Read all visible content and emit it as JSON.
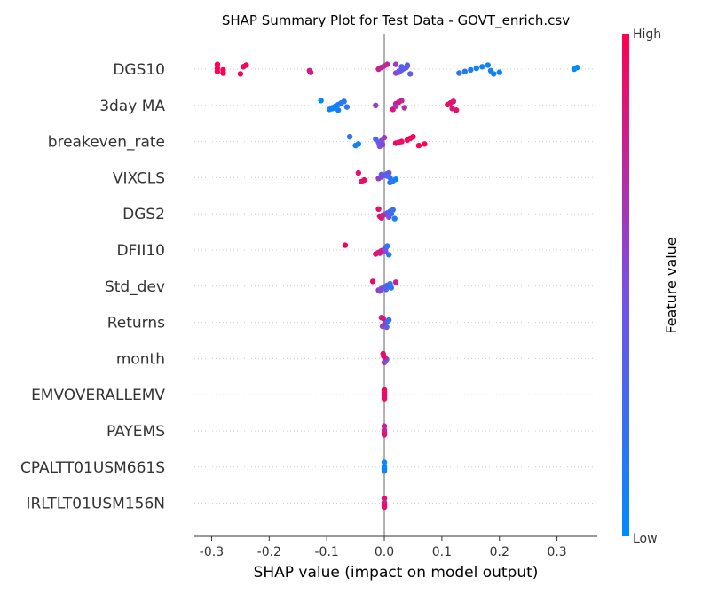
{
  "chart_data": {
    "type": "scatter",
    "title": "SHAP Summary Plot for Test Data - GOVT_enrich.csv",
    "xlabel": "SHAP value (impact on model output)",
    "xlim": [
      -0.33,
      0.37
    ],
    "xticks": [
      "-0.3",
      "-0.2",
      "-0.1",
      "0.0",
      "0.1",
      "0.2",
      "0.3"
    ],
    "xtick_values": [
      -0.3,
      -0.2,
      -0.1,
      0.0,
      0.1,
      0.2,
      0.3
    ],
    "colorbar": {
      "label": "Feature value",
      "high": "High",
      "low": "Low",
      "low_color": "#008bfb",
      "high_color": "#ff0051"
    },
    "features": [
      {
        "name": "DGS10",
        "points": [
          [
            -0.29,
            0.98
          ],
          [
            -0.28,
            1
          ],
          [
            -0.29,
            0.95
          ],
          [
            -0.28,
            0.97
          ],
          [
            -0.29,
            0.99
          ],
          [
            -0.245,
            0.95
          ],
          [
            -0.24,
            0.97
          ],
          [
            -0.25,
            0.98
          ],
          [
            -0.128,
            0.85
          ],
          [
            -0.13,
            0.82
          ],
          [
            -0.01,
            0.8
          ],
          [
            -0.005,
            0.75
          ],
          [
            0.0,
            0.7
          ],
          [
            0.005,
            0.78
          ],
          [
            0.02,
            0.55
          ],
          [
            0.025,
            0.45
          ],
          [
            0.03,
            0.4
          ],
          [
            0.035,
            0.35
          ],
          [
            0.03,
            0.3
          ],
          [
            0.04,
            0.3
          ],
          [
            0.045,
            0.35
          ],
          [
            0.025,
            0.5
          ],
          [
            0.028,
            0.42
          ],
          [
            0.032,
            0.38
          ],
          [
            0.038,
            0.33
          ],
          [
            0.04,
            0.4
          ],
          [
            0.02,
            0.6
          ],
          [
            0.13,
            0.2
          ],
          [
            0.14,
            0.15
          ],
          [
            0.15,
            0.1
          ],
          [
            0.16,
            0.08
          ],
          [
            0.17,
            0.1
          ],
          [
            0.18,
            0.05
          ],
          [
            0.19,
            0.05
          ],
          [
            0.2,
            0.06
          ],
          [
            0.185,
            0.08
          ],
          [
            0.33,
            0.0
          ],
          [
            0.335,
            0.02
          ]
        ]
      },
      {
        "name": "3day MA",
        "points": [
          [
            -0.11,
            0.0
          ],
          [
            -0.095,
            0.05
          ],
          [
            -0.09,
            0.1
          ],
          [
            -0.085,
            0.1
          ],
          [
            -0.08,
            0.1
          ],
          [
            -0.075,
            0.15
          ],
          [
            -0.07,
            0.15
          ],
          [
            -0.08,
            0.08
          ],
          [
            -0.09,
            0.05
          ],
          [
            -0.065,
            0.2
          ],
          [
            -0.015,
            0.6
          ],
          [
            0.02,
            0.8
          ],
          [
            0.025,
            0.85
          ],
          [
            0.03,
            0.75
          ],
          [
            0.015,
            0.9
          ],
          [
            0.035,
            0.7
          ],
          [
            0.02,
            0.65
          ],
          [
            0.11,
            0.95
          ],
          [
            0.115,
            0.9
          ],
          [
            0.12,
            0.88
          ],
          [
            0.125,
            0.92
          ],
          [
            0.118,
            0.85
          ]
        ]
      },
      {
        "name": "breakeven_rate",
        "points": [
          [
            -0.06,
            0.2
          ],
          [
            -0.05,
            0.1
          ],
          [
            -0.045,
            0.05
          ],
          [
            -0.01,
            0.4
          ],
          [
            -0.005,
            0.5
          ],
          [
            -0.015,
            0.3
          ],
          [
            0.0,
            0.6
          ],
          [
            -0.008,
            0.45
          ],
          [
            -0.003,
            0.55
          ],
          [
            0.02,
            1
          ],
          [
            0.03,
            0.95
          ],
          [
            0.04,
            0.97
          ],
          [
            0.045,
            0.92
          ],
          [
            0.05,
            0.96
          ],
          [
            0.06,
            0.98
          ],
          [
            0.07,
            0.95
          ],
          [
            0.025,
            0.9
          ]
        ]
      },
      {
        "name": "VIXCLS",
        "points": [
          [
            -0.045,
            0.9
          ],
          [
            -0.04,
            0.85
          ],
          [
            -0.035,
            0.95
          ],
          [
            -0.01,
            0.6
          ],
          [
            -0.005,
            0.55
          ],
          [
            0.0,
            0.5
          ],
          [
            0.005,
            0.3
          ],
          [
            0.01,
            0.2
          ],
          [
            0.015,
            0.1
          ],
          [
            0.02,
            0.05
          ],
          [
            0.01,
            0.15
          ],
          [
            0.005,
            0.25
          ],
          [
            -0.005,
            0.4
          ],
          [
            0.008,
            0.45
          ],
          [
            0.012,
            0.18
          ]
        ]
      },
      {
        "name": "DGS2",
        "points": [
          [
            -0.01,
            0.9
          ],
          [
            -0.005,
            0.85
          ],
          [
            -0.008,
            0.95
          ],
          [
            0.0,
            0.6
          ],
          [
            0.005,
            0.4
          ],
          [
            0.01,
            0.3
          ],
          [
            0.015,
            0.2
          ],
          [
            0.018,
            0.1
          ],
          [
            0.008,
            0.5
          ],
          [
            -0.003,
            0.75
          ],
          [
            0.012,
            0.25
          ]
        ]
      },
      {
        "name": "DFII10",
        "points": [
          [
            -0.068,
            1.0
          ],
          [
            -0.015,
            0.9
          ],
          [
            -0.01,
            0.85
          ],
          [
            -0.005,
            0.8
          ],
          [
            0.0,
            0.6
          ],
          [
            0.003,
            0.4
          ],
          [
            0.005,
            0.2
          ],
          [
            0.008,
            0.1
          ],
          [
            -0.008,
            0.82
          ],
          [
            0.002,
            0.5
          ]
        ]
      },
      {
        "name": "Std_dev",
        "points": [
          [
            -0.02,
            0.95
          ],
          [
            -0.01,
            0.6
          ],
          [
            -0.005,
            0.5
          ],
          [
            0.0,
            0.4
          ],
          [
            0.005,
            0.3
          ],
          [
            0.01,
            0.2
          ],
          [
            0.02,
            0.8
          ],
          [
            -0.008,
            0.55
          ],
          [
            0.003,
            0.35
          ],
          [
            0.012,
            0.15
          ]
        ]
      },
      {
        "name": "Returns",
        "points": [
          [
            -0.005,
            0.7
          ],
          [
            -0.003,
            0.6
          ],
          [
            0.0,
            0.5
          ],
          [
            0.002,
            0.8
          ],
          [
            0.005,
            0.3
          ],
          [
            0.008,
            0.2
          ],
          [
            -0.002,
            0.9
          ],
          [
            0.004,
            0.4
          ]
        ]
      },
      {
        "name": "month",
        "points": [
          [
            -0.002,
            0.9
          ],
          [
            0.0,
            0.7
          ],
          [
            0.002,
            0.5
          ],
          [
            0.004,
            0.3
          ],
          [
            0.001,
            0.8
          ],
          [
            -0.001,
            0.95
          ]
        ]
      },
      {
        "name": "EMVOVERALLEMV",
        "points": [
          [
            0.0,
            1.0
          ],
          [
            0.0,
            0.9
          ],
          [
            0.0,
            0.95
          ],
          [
            0.0,
            0.85
          ],
          [
            0.0,
            0.98
          ],
          [
            0.0,
            0.92
          ]
        ]
      },
      {
        "name": "PAYEMS",
        "points": [
          [
            0.0,
            0.8
          ],
          [
            0.0,
            0.85
          ],
          [
            0.0,
            0.9
          ],
          [
            0.0,
            0.95
          ],
          [
            0.0,
            0.75
          ]
        ]
      },
      {
        "name": "CPALTT01USM661S",
        "points": [
          [
            0.0,
            0.05
          ],
          [
            0.0,
            0.08
          ],
          [
            0.0,
            0.1
          ],
          [
            0.0,
            0.06
          ],
          [
            0.0,
            0.04
          ]
        ]
      },
      {
        "name": "IRLTLT01USM156N",
        "points": [
          [
            0.0,
            0.9
          ],
          [
            0.0,
            0.95
          ],
          [
            0.0,
            0.85
          ],
          [
            0.0,
            1.0
          ],
          [
            0.0,
            0.8
          ]
        ]
      }
    ]
  }
}
